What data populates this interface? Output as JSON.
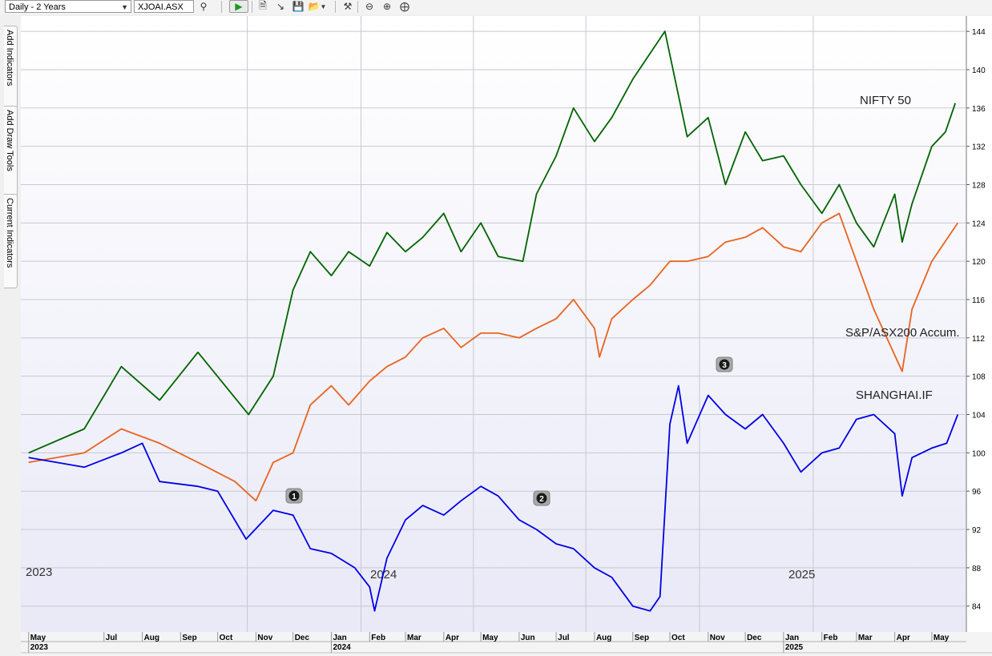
{
  "toolbar": {
    "period_select": "Daily - 2 Years",
    "symbol_input": "XJOAI.ASX",
    "icons": [
      "search-icon",
      "run-icon",
      "new-icon",
      "export-icon",
      "save-icon",
      "open-icon",
      "tools-icon",
      "zoom-out-icon",
      "zoom-in-icon",
      "zoom-fit-icon"
    ]
  },
  "side_tabs": [
    "Add Indicators",
    "Add Draw Tools",
    "Current Indicators"
  ],
  "colors": {
    "nifty": "#006400",
    "asx": "#e8641e",
    "shanghai": "#0000e6",
    "grid": "#c8c8d2"
  },
  "chart_data": {
    "type": "line",
    "year_watermarks": [
      "2023",
      "2024",
      "2025"
    ],
    "x_months": [
      "May",
      "Jul",
      "Aug",
      "Sep",
      "Oct",
      "Nov",
      "Dec",
      "Jan",
      "Feb",
      "Mar",
      "Apr",
      "May",
      "Jun",
      "Jul",
      "Aug",
      "Sep",
      "Oct",
      "Nov",
      "Dec",
      "Jan",
      "Feb",
      "Mar",
      "Apr",
      "May"
    ],
    "x_years": [
      "2023",
      "2024",
      "2025"
    ],
    "y_ticks": [
      84,
      88,
      92,
      96,
      100,
      104,
      108,
      112,
      116,
      120,
      124,
      128,
      132,
      136,
      140,
      144
    ],
    "ylim": [
      81.3,
      145.6
    ],
    "markers": [
      "1",
      "2",
      "3"
    ],
    "series": [
      {
        "name": "NIFTY 50",
        "x": [
          "2023-05-01",
          "2023-06-15",
          "2023-07-15",
          "2023-08-15",
          "2023-09-15",
          "2023-10-26",
          "2023-11-15",
          "2023-12-01",
          "2023-12-15",
          "2024-01-01",
          "2024-01-15",
          "2024-02-01",
          "2024-02-15",
          "2024-03-01",
          "2024-03-15",
          "2024-04-01",
          "2024-04-15",
          "2024-05-01",
          "2024-05-15",
          "2024-06-04",
          "2024-06-15",
          "2024-07-01",
          "2024-07-15",
          "2024-08-01",
          "2024-08-15",
          "2024-09-01",
          "2024-09-27",
          "2024-10-15",
          "2024-11-01",
          "2024-11-15",
          "2024-12-01",
          "2024-12-15",
          "2025-01-01",
          "2025-01-15",
          "2025-02-01",
          "2025-02-15",
          "2025-03-01",
          "2025-03-15",
          "2025-04-01",
          "2025-04-07",
          "2025-04-15",
          "2025-05-01",
          "2025-05-12",
          "2025-05-20"
        ],
        "values": [
          100,
          102.5,
          109,
          105.5,
          110.5,
          104,
          108,
          117,
          121,
          118.5,
          121,
          119.5,
          123,
          121,
          122.5,
          125,
          121,
          124,
          120.5,
          120,
          127,
          131,
          136,
          132.5,
          135,
          139,
          144,
          133,
          135,
          128,
          133.5,
          130.5,
          131,
          128,
          125,
          128,
          124,
          121.5,
          127,
          122,
          126,
          132,
          133.5,
          136.5
        ]
      },
      {
        "name": "S&P/ASX200 Accum.",
        "x": [
          "2023-05-01",
          "2023-06-15",
          "2023-07-15",
          "2023-08-15",
          "2023-09-15",
          "2023-10-15",
          "2023-11-01",
          "2023-11-15",
          "2023-12-01",
          "2023-12-15",
          "2024-01-01",
          "2024-01-15",
          "2024-02-01",
          "2024-02-15",
          "2024-03-01",
          "2024-03-15",
          "2024-04-01",
          "2024-04-15",
          "2024-05-01",
          "2024-05-15",
          "2024-06-01",
          "2024-06-15",
          "2024-07-01",
          "2024-07-15",
          "2024-08-01",
          "2024-08-05",
          "2024-08-15",
          "2024-09-01",
          "2024-09-15",
          "2024-10-01",
          "2024-10-15",
          "2024-11-01",
          "2024-11-15",
          "2024-12-01",
          "2024-12-15",
          "2025-01-01",
          "2025-01-15",
          "2025-02-01",
          "2025-02-15",
          "2025-03-01",
          "2025-03-15",
          "2025-04-07",
          "2025-04-15",
          "2025-05-01",
          "2025-05-22"
        ],
        "values": [
          99,
          100,
          102.5,
          101,
          99,
          97,
          95,
          99,
          100,
          105,
          107,
          105,
          107.5,
          109,
          110,
          112,
          113,
          111,
          112.5,
          112.5,
          112,
          113,
          114,
          116,
          113,
          110,
          114,
          116,
          117.5,
          120,
          120,
          120.5,
          122,
          122.5,
          123.5,
          121.5,
          121,
          124,
          125,
          120,
          115,
          108.5,
          115,
          120,
          124
        ]
      },
      {
        "name": "SHANGHAI.IF",
        "x": [
          "2023-05-01",
          "2023-06-15",
          "2023-07-15",
          "2023-08-01",
          "2023-08-15",
          "2023-09-15",
          "2023-10-01",
          "2023-10-24",
          "2023-11-15",
          "2023-12-01",
          "2023-12-15",
          "2024-01-01",
          "2024-01-20",
          "2024-02-01",
          "2024-02-05",
          "2024-02-15",
          "2024-03-01",
          "2024-03-15",
          "2024-04-01",
          "2024-04-15",
          "2024-05-01",
          "2024-05-15",
          "2024-06-01",
          "2024-06-15",
          "2024-07-01",
          "2024-07-15",
          "2024-08-01",
          "2024-08-15",
          "2024-09-01",
          "2024-09-15",
          "2024-09-23",
          "2024-10-01",
          "2024-10-08",
          "2024-10-15",
          "2024-11-01",
          "2024-11-15",
          "2024-12-01",
          "2024-12-15",
          "2025-01-01",
          "2025-01-15",
          "2025-02-01",
          "2025-02-15",
          "2025-03-01",
          "2025-03-15",
          "2025-04-01",
          "2025-04-07",
          "2025-04-15",
          "2025-05-01",
          "2025-05-13",
          "2025-05-22"
        ],
        "values": [
          99.5,
          98.5,
          100,
          101,
          97,
          96.5,
          96,
          91,
          94,
          93.5,
          90,
          89.5,
          88,
          86,
          83.5,
          89,
          93,
          94.5,
          93.5,
          95,
          96.5,
          95.5,
          93,
          92,
          90.5,
          90,
          88,
          87,
          84,
          83.5,
          85,
          103,
          107,
          101,
          106,
          104,
          102.5,
          104,
          101,
          98,
          100,
          100.5,
          103.5,
          104,
          102,
          95.5,
          99.5,
          100.5,
          101,
          104
        ]
      }
    ]
  }
}
